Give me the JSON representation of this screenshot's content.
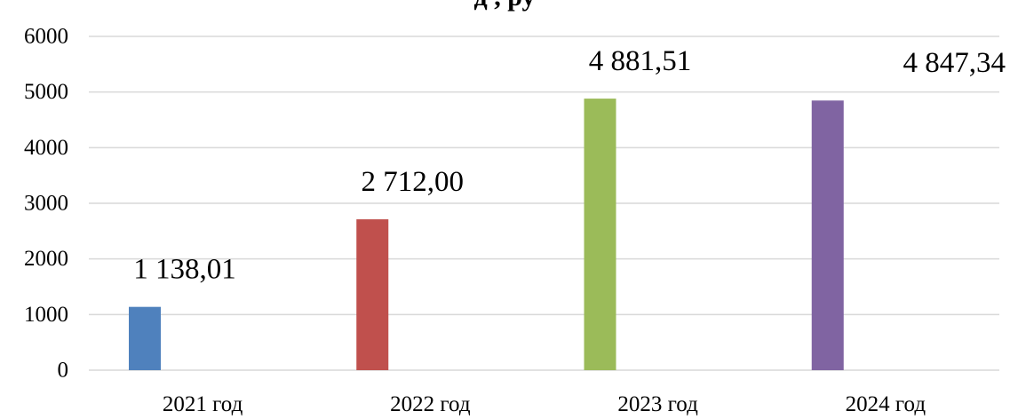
{
  "chart_data": {
    "type": "bar",
    "title": "д ,  ру",
    "categories": [
      "2021 год",
      "2022 год",
      "2023 год",
      "2024 год"
    ],
    "values": [
      1138.01,
      2712.0,
      4881.51,
      4847.34
    ],
    "data_labels": [
      "1 138,01",
      "2 712,00",
      "4 881,51",
      "4 847,34"
    ],
    "colors": [
      "#4f81bd",
      "#c0504d",
      "#9bbb59",
      "#8064a2"
    ],
    "ylim": [
      0,
      6000
    ],
    "yticks": [
      0,
      1000,
      2000,
      3000,
      4000,
      5000,
      6000
    ],
    "ytick_labels": [
      "0",
      "1000",
      "2000",
      "3000",
      "4000",
      "5000",
      "6000"
    ],
    "xlabel": "",
    "ylabel": "",
    "grid": true,
    "legend": "none"
  }
}
